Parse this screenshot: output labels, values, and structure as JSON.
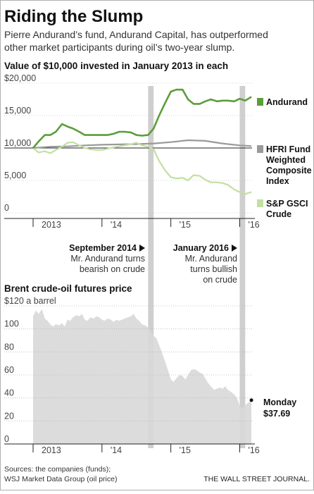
{
  "headline": "Riding the Slump",
  "dek_line1": "Pierre Andurand’s fund, Andurand Capital, has outperformed",
  "dek_line2": "other market participants during oil’s two-year slump.",
  "annotations": [
    {
      "title": "September 2014",
      "lines": [
        "Mr. Andurand turns",
        "bearish on crude"
      ]
    },
    {
      "title": "January 2016",
      "lines": [
        "Mr. Andurand",
        "turns bullish",
        "on crude"
      ]
    }
  ],
  "sources_line1": "Sources: the companies (funds);",
  "sources_line2": "WSJ Market Data Group (oil price)",
  "credit": "THE WALL STREET JOURNAL.",
  "colors": {
    "andurand": "#5a9e3a",
    "hfri": "#9a9a9a",
    "sp": "#c2e0a0",
    "brent_fill": "#d9d9d9",
    "band": "#cfcfcf"
  },
  "chart_data": [
    {
      "type": "line",
      "title": "Value of $10,000 invested in January 2013 in each",
      "ylim": [
        0,
        20000
      ],
      "yticks": [
        "$20,000",
        "15,000",
        "10,000",
        "5,000",
        "0"
      ],
      "xticks": [
        "2013",
        "'14",
        "'15",
        "'16"
      ],
      "highlight_periods": [
        [
          2014.67,
          2014.75
        ],
        [
          2016.0,
          2016.08
        ]
      ],
      "series": [
        {
          "name": "Andurand",
          "color": "#5a9e3a",
          "x": [
            2013.0,
            2013.08,
            2013.17,
            2013.25,
            2013.33,
            2013.42,
            2013.5,
            2013.58,
            2013.67,
            2013.75,
            2013.83,
            2013.92,
            2014.0,
            2014.08,
            2014.17,
            2014.25,
            2014.33,
            2014.42,
            2014.5,
            2014.58,
            2014.67,
            2014.75,
            2014.83,
            2014.92,
            2015.0,
            2015.08,
            2015.17,
            2015.25,
            2015.33,
            2015.42,
            2015.5,
            2015.58,
            2015.67,
            2015.75,
            2015.83,
            2015.92,
            2016.0,
            2016.08,
            2016.17
          ],
          "y": [
            10000,
            11000,
            12000,
            12000,
            12500,
            13700,
            13300,
            13000,
            12500,
            12000,
            12000,
            12000,
            12000,
            12000,
            12200,
            12500,
            12500,
            12400,
            12000,
            11900,
            12000,
            13000,
            15000,
            17000,
            18700,
            19000,
            19000,
            17500,
            16800,
            16800,
            17200,
            17500,
            17200,
            17300,
            17300,
            17200,
            17600,
            17300,
            17900
          ]
        },
        {
          "name": "HFRI Fund Weighted Composite Index",
          "color": "#9a9a9a",
          "x": [
            2013.0,
            2013.25,
            2013.5,
            2013.75,
            2014.0,
            2014.25,
            2014.5,
            2014.75,
            2015.0,
            2015.25,
            2015.5,
            2015.75,
            2016.0,
            2016.17
          ],
          "y": [
            10000,
            10200,
            10250,
            10400,
            10500,
            10550,
            10600,
            10700,
            10900,
            11200,
            11100,
            10700,
            10400,
            10300
          ]
        },
        {
          "name": "S&P GSCI Crude",
          "color": "#c2e0a0",
          "x": [
            2013.0,
            2013.08,
            2013.17,
            2013.25,
            2013.33,
            2013.42,
            2013.5,
            2013.58,
            2013.67,
            2013.75,
            2013.83,
            2013.92,
            2014.0,
            2014.17,
            2014.33,
            2014.42,
            2014.5,
            2014.58,
            2014.67,
            2014.75,
            2014.83,
            2014.92,
            2015.0,
            2015.08,
            2015.17,
            2015.25,
            2015.33,
            2015.42,
            2015.5,
            2015.58,
            2015.67,
            2015.75,
            2015.83,
            2015.92,
            2016.0,
            2016.08,
            2016.17
          ],
          "y": [
            10000,
            9300,
            9500,
            9200,
            9700,
            10200,
            10800,
            10900,
            10400,
            10000,
            9800,
            9700,
            9700,
            10100,
            10400,
            10600,
            10800,
            10400,
            10200,
            9800,
            8000,
            6500,
            5500,
            5300,
            5400,
            5000,
            5800,
            5700,
            5100,
            4700,
            4700,
            4600,
            4300,
            3600,
            3200,
            2900,
            3200
          ]
        }
      ]
    },
    {
      "type": "area",
      "title": "Brent crude-oil futures price",
      "unit_label": "$120 a barrel",
      "ylim": [
        0,
        120
      ],
      "yticks": [
        "$120 a barrel",
        "100",
        "80",
        "60",
        "40",
        "20",
        "0"
      ],
      "xticks": [
        "2013",
        "'14",
        "'15",
        "'16"
      ],
      "highlight_periods": [
        [
          2014.67,
          2014.75
        ],
        [
          2016.0,
          2016.08
        ]
      ],
      "callout": {
        "label": "Monday",
        "value": "$37.69"
      },
      "series": [
        {
          "name": "Brent crude",
          "color": "#d9d9d9",
          "x": [
            2013.0,
            2013.04,
            2013.08,
            2013.13,
            2013.17,
            2013.21,
            2013.25,
            2013.29,
            2013.33,
            2013.38,
            2013.42,
            2013.46,
            2013.5,
            2013.54,
            2013.58,
            2013.63,
            2013.67,
            2013.71,
            2013.75,
            2013.79,
            2013.83,
            2013.88,
            2013.92,
            2013.96,
            2014.0,
            2014.04,
            2014.08,
            2014.13,
            2014.17,
            2014.21,
            2014.25,
            2014.29,
            2014.33,
            2014.38,
            2014.42,
            2014.46,
            2014.5,
            2014.54,
            2014.58,
            2014.63,
            2014.67,
            2014.71,
            2014.75,
            2014.79,
            2014.83,
            2014.88,
            2014.92,
            2014.96,
            2015.0,
            2015.04,
            2015.08,
            2015.13,
            2015.17,
            2015.21,
            2015.25,
            2015.29,
            2015.33,
            2015.38,
            2015.42,
            2015.46,
            2015.5,
            2015.54,
            2015.58,
            2015.63,
            2015.67,
            2015.71,
            2015.75,
            2015.79,
            2015.83,
            2015.88,
            2015.92,
            2015.96,
            2016.0,
            2016.04,
            2016.08,
            2016.13,
            2016.17
          ],
          "y": [
            111,
            116,
            113,
            117,
            109,
            107,
            104,
            102,
            104,
            103,
            105,
            102,
            108,
            107,
            110,
            112,
            111,
            113,
            108,
            107,
            110,
            109,
            111,
            110,
            108,
            107,
            109,
            108,
            106,
            108,
            107,
            108,
            109,
            110,
            111,
            113,
            109,
            107,
            104,
            103,
            101,
            98,
            94,
            92,
            86,
            78,
            71,
            64,
            56,
            54,
            57,
            60,
            59,
            56,
            60,
            64,
            65,
            64,
            62,
            61,
            57,
            53,
            50,
            47,
            48,
            49,
            48,
            50,
            47,
            45,
            43,
            40,
            33,
            31,
            34,
            36,
            38
          ]
        }
      ]
    }
  ]
}
